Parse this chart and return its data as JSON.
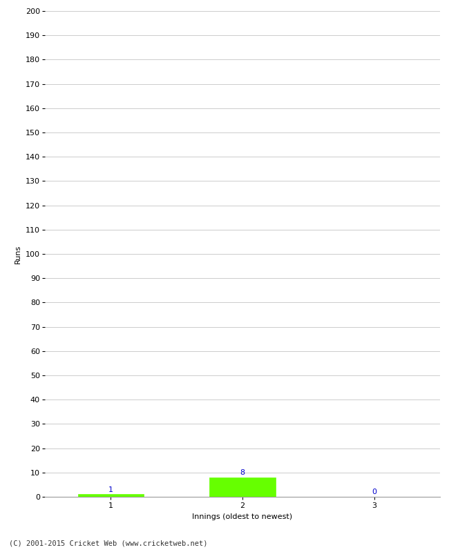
{
  "categories": [
    1,
    2,
    3
  ],
  "values": [
    1,
    8,
    0
  ],
  "bar_color": "#66ff00",
  "xlabel": "Innings (oldest to newest)",
  "ylabel": "Runs",
  "ylim": [
    0,
    200
  ],
  "yticks": [
    0,
    10,
    20,
    30,
    40,
    50,
    60,
    70,
    80,
    90,
    100,
    110,
    120,
    130,
    140,
    150,
    160,
    170,
    180,
    190,
    200
  ],
  "background_color": "#ffffff",
  "grid_color": "#cccccc",
  "label_color": "#0000cc",
  "footer": "(C) 2001-2015 Cricket Web (www.cricketweb.net)",
  "bar_width": 0.5,
  "xlim": [
    0.5,
    3.5
  ]
}
